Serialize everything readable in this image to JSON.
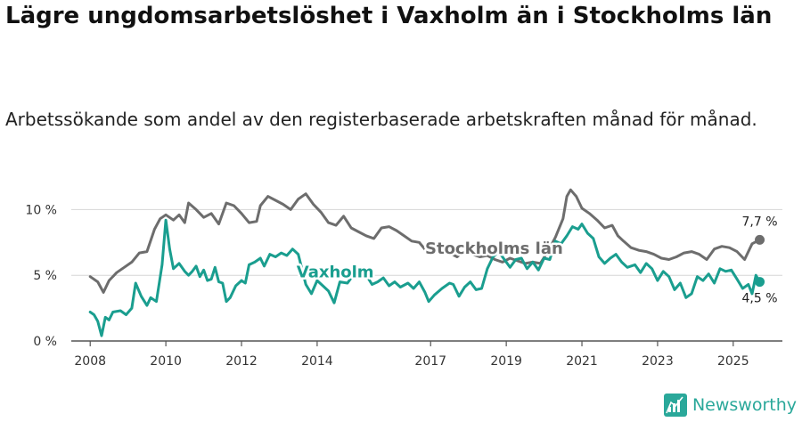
{
  "title": "Lägre ungdomsarbetslöshet i Vaxholm än i Stockholms län",
  "subtitle": "Arbetssökande som andel av den registerbaserade arbetskraften månad för månad.",
  "brand": {
    "name": "Newsworthy",
    "icon": "newsworthy-logo-icon"
  },
  "colors": {
    "stockholm": "#6d6d6d",
    "vaxholm": "#1a9e8f",
    "axis": "#555555",
    "grid": "#d6d6d6"
  },
  "chart_data": {
    "type": "line",
    "title": "Lägre ungdomsarbetslöshet i Vaxholm än i Stockholms län",
    "xlabel": "",
    "ylabel": "",
    "xlim": [
      2007.5,
      2026.3
    ],
    "ylim": [
      0,
      10.5
    ],
    "x_ticks": [
      2008,
      2010,
      2012,
      2014,
      2017,
      2019,
      2021,
      2023,
      2025
    ],
    "y_ticks": [
      {
        "value": 0,
        "label": "0 %"
      },
      {
        "value": 5,
        "label": "5 %"
      },
      {
        "value": 10,
        "label": "10 %"
      }
    ],
    "grid": true,
    "series": [
      {
        "name": "Stockholms län",
        "label": "Stockholms län",
        "end_label": "7,7 %",
        "points": [
          [
            2008.0,
            4.9
          ],
          [
            2008.2,
            4.5
          ],
          [
            2008.35,
            3.7
          ],
          [
            2008.5,
            4.6
          ],
          [
            2008.7,
            5.2
          ],
          [
            2008.9,
            5.6
          ],
          [
            2009.1,
            6.0
          ],
          [
            2009.3,
            6.7
          ],
          [
            2009.5,
            6.8
          ],
          [
            2009.7,
            8.5
          ],
          [
            2009.85,
            9.3
          ],
          [
            2010.0,
            9.6
          ],
          [
            2010.2,
            9.2
          ],
          [
            2010.35,
            9.6
          ],
          [
            2010.5,
            9.0
          ],
          [
            2010.6,
            10.5
          ],
          [
            2010.8,
            10.0
          ],
          [
            2011.0,
            9.4
          ],
          [
            2011.2,
            9.7
          ],
          [
            2011.4,
            8.9
          ],
          [
            2011.6,
            10.5
          ],
          [
            2011.8,
            10.3
          ],
          [
            2012.0,
            9.7
          ],
          [
            2012.2,
            9.0
          ],
          [
            2012.4,
            9.1
          ],
          [
            2012.5,
            10.3
          ],
          [
            2012.7,
            11.0
          ],
          [
            2012.9,
            10.7
          ],
          [
            2013.1,
            10.4
          ],
          [
            2013.3,
            10.0
          ],
          [
            2013.5,
            10.8
          ],
          [
            2013.7,
            11.2
          ],
          [
            2013.9,
            10.4
          ],
          [
            2014.1,
            9.8
          ],
          [
            2014.3,
            9.0
          ],
          [
            2014.5,
            8.8
          ],
          [
            2014.7,
            9.5
          ],
          [
            2014.9,
            8.6
          ],
          [
            2015.1,
            8.3
          ],
          [
            2015.3,
            8.0
          ],
          [
            2015.5,
            7.8
          ],
          [
            2015.7,
            8.6
          ],
          [
            2015.9,
            8.7
          ],
          [
            2016.1,
            8.4
          ],
          [
            2016.3,
            8.0
          ],
          [
            2016.5,
            7.6
          ],
          [
            2016.7,
            7.5
          ],
          [
            2016.9,
            6.8
          ],
          [
            2017.1,
            7.1
          ],
          [
            2017.3,
            6.8
          ],
          [
            2017.5,
            6.7
          ],
          [
            2017.7,
            6.4
          ],
          [
            2017.9,
            6.9
          ],
          [
            2018.1,
            6.6
          ],
          [
            2018.3,
            6.4
          ],
          [
            2018.5,
            6.5
          ],
          [
            2018.7,
            6.2
          ],
          [
            2018.9,
            6.0
          ],
          [
            2019.1,
            6.3
          ],
          [
            2019.3,
            6.1
          ],
          [
            2019.5,
            5.9
          ],
          [
            2019.7,
            6.0
          ],
          [
            2019.9,
            5.9
          ],
          [
            2020.1,
            6.8
          ],
          [
            2020.3,
            7.9
          ],
          [
            2020.5,
            9.3
          ],
          [
            2020.6,
            11.0
          ],
          [
            2020.7,
            11.5
          ],
          [
            2020.85,
            11.0
          ],
          [
            2021.0,
            10.1
          ],
          [
            2021.2,
            9.7
          ],
          [
            2021.4,
            9.2
          ],
          [
            2021.6,
            8.6
          ],
          [
            2021.8,
            8.8
          ],
          [
            2021.95,
            8.0
          ],
          [
            2022.1,
            7.6
          ],
          [
            2022.3,
            7.1
          ],
          [
            2022.5,
            6.9
          ],
          [
            2022.7,
            6.8
          ],
          [
            2022.9,
            6.6
          ],
          [
            2023.1,
            6.3
          ],
          [
            2023.3,
            6.2
          ],
          [
            2023.5,
            6.4
          ],
          [
            2023.7,
            6.7
          ],
          [
            2023.9,
            6.8
          ],
          [
            2024.1,
            6.6
          ],
          [
            2024.3,
            6.2
          ],
          [
            2024.5,
            7.0
          ],
          [
            2024.7,
            7.2
          ],
          [
            2024.9,
            7.1
          ],
          [
            2025.1,
            6.8
          ],
          [
            2025.3,
            6.2
          ],
          [
            2025.5,
            7.4
          ],
          [
            2025.7,
            7.7
          ]
        ]
      },
      {
        "name": "Vaxholm",
        "label": "Vaxholm",
        "end_label": "4,5 %",
        "points": [
          [
            2008.0,
            2.2
          ],
          [
            2008.1,
            2.0
          ],
          [
            2008.2,
            1.5
          ],
          [
            2008.3,
            0.4
          ],
          [
            2008.4,
            1.8
          ],
          [
            2008.5,
            1.6
          ],
          [
            2008.6,
            2.2
          ],
          [
            2008.8,
            2.3
          ],
          [
            2008.95,
            2.0
          ],
          [
            2009.1,
            2.5
          ],
          [
            2009.2,
            4.4
          ],
          [
            2009.35,
            3.4
          ],
          [
            2009.5,
            2.7
          ],
          [
            2009.6,
            3.3
          ],
          [
            2009.75,
            3.0
          ],
          [
            2009.9,
            5.8
          ],
          [
            2010.0,
            9.2
          ],
          [
            2010.1,
            7.0
          ],
          [
            2010.2,
            5.5
          ],
          [
            2010.35,
            5.9
          ],
          [
            2010.5,
            5.3
          ],
          [
            2010.6,
            5.0
          ],
          [
            2010.7,
            5.3
          ],
          [
            2010.8,
            5.7
          ],
          [
            2010.9,
            4.9
          ],
          [
            2011.0,
            5.4
          ],
          [
            2011.1,
            4.6
          ],
          [
            2011.2,
            4.7
          ],
          [
            2011.3,
            5.6
          ],
          [
            2011.4,
            4.5
          ],
          [
            2011.5,
            4.4
          ],
          [
            2011.6,
            3.0
          ],
          [
            2011.7,
            3.3
          ],
          [
            2011.85,
            4.2
          ],
          [
            2012.0,
            4.6
          ],
          [
            2012.1,
            4.4
          ],
          [
            2012.2,
            5.8
          ],
          [
            2012.35,
            6.0
          ],
          [
            2012.5,
            6.3
          ],
          [
            2012.6,
            5.7
          ],
          [
            2012.75,
            6.6
          ],
          [
            2012.9,
            6.4
          ],
          [
            2013.05,
            6.7
          ],
          [
            2013.2,
            6.5
          ],
          [
            2013.35,
            7.0
          ],
          [
            2013.5,
            6.6
          ],
          [
            2013.7,
            4.3
          ],
          [
            2013.85,
            3.6
          ],
          [
            2014.0,
            4.6
          ],
          [
            2014.15,
            4.2
          ],
          [
            2014.3,
            3.8
          ],
          [
            2014.45,
            2.9
          ],
          [
            2014.6,
            4.5
          ],
          [
            2014.8,
            4.4
          ],
          [
            2014.95,
            5.0
          ],
          [
            2015.1,
            5.3
          ],
          [
            2015.3,
            5.0
          ],
          [
            2015.45,
            4.3
          ],
          [
            2015.6,
            4.5
          ],
          [
            2015.75,
            4.8
          ],
          [
            2015.9,
            4.2
          ],
          [
            2016.05,
            4.5
          ],
          [
            2016.2,
            4.1
          ],
          [
            2016.4,
            4.4
          ],
          [
            2016.55,
            4.0
          ],
          [
            2016.7,
            4.5
          ],
          [
            2016.85,
            3.7
          ],
          [
            2016.95,
            3.0
          ],
          [
            2017.1,
            3.5
          ],
          [
            2017.3,
            4.0
          ],
          [
            2017.5,
            4.4
          ],
          [
            2017.6,
            4.3
          ],
          [
            2017.75,
            3.4
          ],
          [
            2017.9,
            4.1
          ],
          [
            2018.05,
            4.5
          ],
          [
            2018.2,
            3.9
          ],
          [
            2018.35,
            4.0
          ],
          [
            2018.5,
            5.5
          ],
          [
            2018.65,
            6.4
          ],
          [
            2018.8,
            6.8
          ],
          [
            2018.95,
            6.2
          ],
          [
            2019.1,
            5.6
          ],
          [
            2019.25,
            6.2
          ],
          [
            2019.4,
            6.3
          ],
          [
            2019.55,
            5.5
          ],
          [
            2019.7,
            6.0
          ],
          [
            2019.85,
            5.4
          ],
          [
            2020.0,
            6.3
          ],
          [
            2020.15,
            6.2
          ],
          [
            2020.3,
            7.6
          ],
          [
            2020.45,
            7.4
          ],
          [
            2020.6,
            8.0
          ],
          [
            2020.75,
            8.7
          ],
          [
            2020.9,
            8.5
          ],
          [
            2021.0,
            8.9
          ],
          [
            2021.15,
            8.2
          ],
          [
            2021.3,
            7.8
          ],
          [
            2021.45,
            6.4
          ],
          [
            2021.6,
            5.9
          ],
          [
            2021.75,
            6.3
          ],
          [
            2021.9,
            6.6
          ],
          [
            2022.05,
            6.0
          ],
          [
            2022.2,
            5.6
          ],
          [
            2022.4,
            5.8
          ],
          [
            2022.55,
            5.2
          ],
          [
            2022.7,
            5.9
          ],
          [
            2022.85,
            5.5
          ],
          [
            2023.0,
            4.6
          ],
          [
            2023.15,
            5.3
          ],
          [
            2023.3,
            4.9
          ],
          [
            2023.45,
            3.9
          ],
          [
            2023.6,
            4.4
          ],
          [
            2023.75,
            3.3
          ],
          [
            2023.9,
            3.6
          ],
          [
            2024.05,
            4.9
          ],
          [
            2024.2,
            4.6
          ],
          [
            2024.35,
            5.1
          ],
          [
            2024.5,
            4.4
          ],
          [
            2024.65,
            5.5
          ],
          [
            2024.8,
            5.3
          ],
          [
            2024.95,
            5.4
          ],
          [
            2025.1,
            4.7
          ],
          [
            2025.25,
            4.0
          ],
          [
            2025.4,
            4.3
          ],
          [
            2025.5,
            3.6
          ],
          [
            2025.6,
            5.0
          ],
          [
            2025.7,
            4.5
          ]
        ]
      }
    ]
  }
}
